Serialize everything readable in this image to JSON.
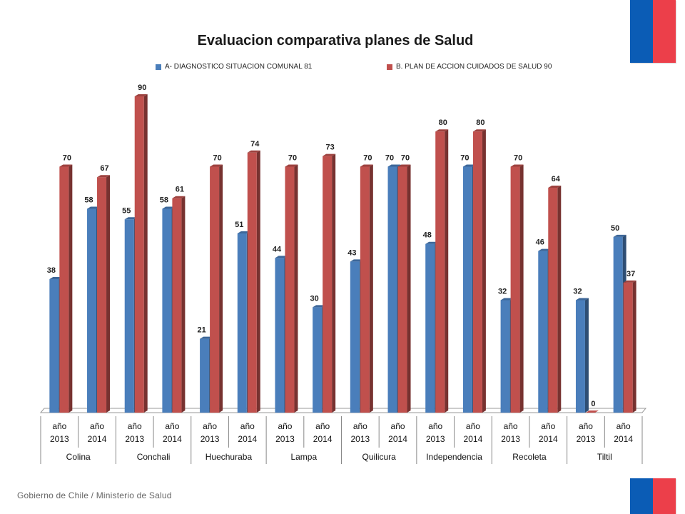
{
  "footer": {
    "text": "Gobierno de Chile / Ministerio de Salud"
  },
  "colors": {
    "series_a": "#4a7ebb",
    "series_b": "#c0504d",
    "flag_blue": "#0b5cb5",
    "flag_red": "#ec3f4a"
  },
  "chart_data": {
    "type": "bar",
    "title": "Evaluacion comparativa planes de Salud",
    "xlabel": "",
    "ylabel": "",
    "ylim": [
      0,
      90
    ],
    "grid": false,
    "legend_position": "top",
    "groups": [
      "Colina",
      "Conchali",
      "Huechuraba",
      "Lampa",
      "Quilicura",
      "Independencia",
      "Recoleta",
      "Tiltil"
    ],
    "categories": [
      "año 2013",
      "año 2014",
      "año 2013",
      "año 2014",
      "año 2013",
      "año 2014",
      "año 2013",
      "año 2014",
      "año 2013",
      "año 2014",
      "año 2013",
      "año 2014",
      "año 2013",
      "año 2014",
      "año 2013",
      "año 2014"
    ],
    "series": [
      {
        "name": "A-  DIAGNOSTICO  SITUACION  COMUNAL 81",
        "values": [
          38,
          58,
          55,
          58,
          21,
          51,
          44,
          30,
          43,
          70,
          48,
          70,
          32,
          46,
          32,
          50
        ]
      },
      {
        "name": "B. PLAN DE ACCION CUIDADOS DE SALUD 90",
        "values": [
          70,
          67,
          90,
          61,
          70,
          74,
          70,
          73,
          70,
          70,
          80,
          80,
          70,
          64,
          0,
          37
        ]
      }
    ]
  }
}
